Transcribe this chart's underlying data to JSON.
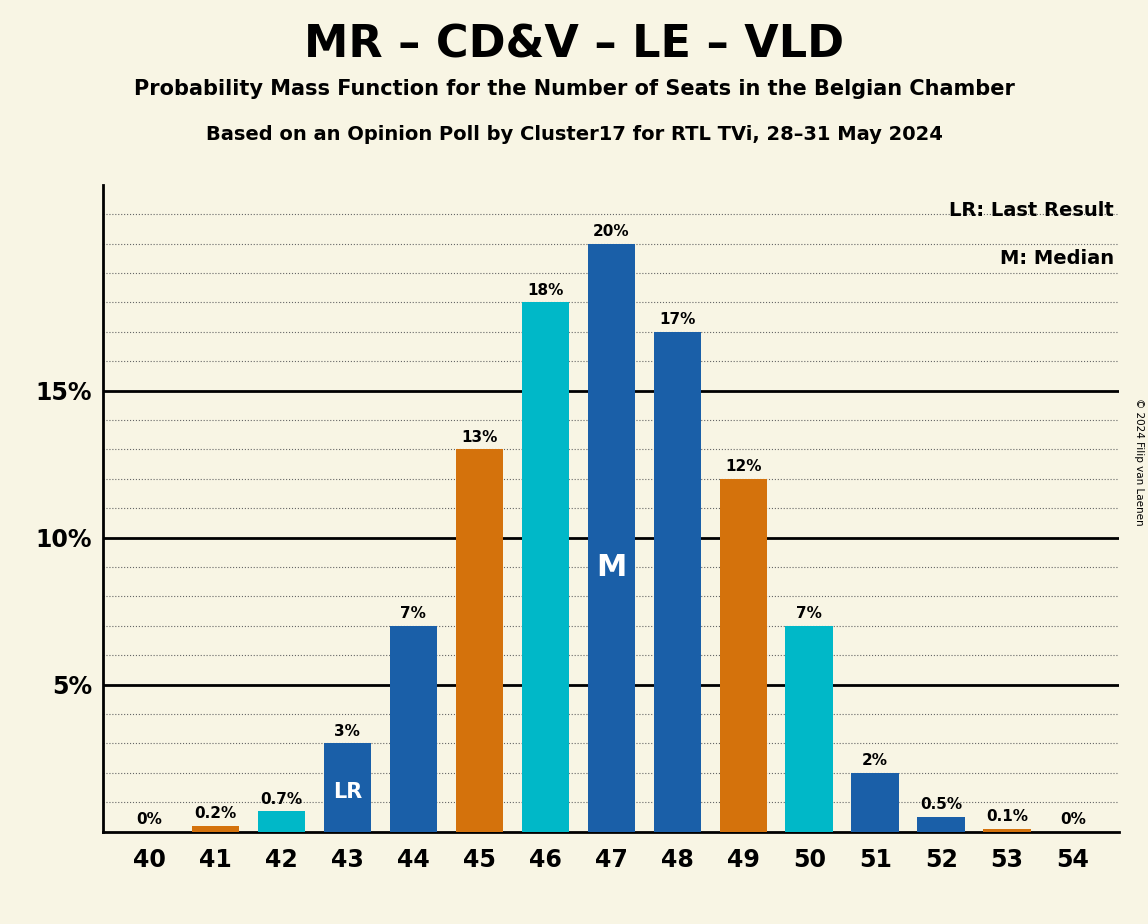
{
  "title": "MR – CD&V – LE – VLD",
  "subtitle1": "Probability Mass Function for the Number of Seats in the Belgian Chamber",
  "subtitle2": "Based on an Opinion Poll by Cluster17 for RTL TVi, 28–31 May 2024",
  "copyright": "© 2024 Filip van Laenen",
  "seats": [
    40,
    41,
    42,
    43,
    44,
    45,
    46,
    47,
    48,
    49,
    50,
    51,
    52,
    53,
    54
  ],
  "probabilities": [
    0.0,
    0.2,
    0.7,
    3.0,
    7.0,
    13.0,
    18.0,
    20.0,
    17.0,
    12.0,
    7.0,
    2.0,
    0.5,
    0.1,
    0.0
  ],
  "bar_colors": [
    "#1a5fa8",
    "#d4720c",
    "#00b8c8",
    "#1a5fa8",
    "#1a5fa8",
    "#d4720c",
    "#00b8c8",
    "#1a5fa8",
    "#1a5fa8",
    "#d4720c",
    "#00b8c8",
    "#1a5fa8",
    "#1a5fa8",
    "#d4720c",
    "#1a5fa8"
  ],
  "labels": [
    "0%",
    "0.2%",
    "0.7%",
    "3%",
    "7%",
    "13%",
    "18%",
    "20%",
    "17%",
    "12%",
    "7%",
    "2%",
    "0.5%",
    "0.1%",
    "0%"
  ],
  "lr_seat": 43,
  "median_seat": 47,
  "background_color": "#f8f5e4",
  "ylim": [
    0,
    22
  ],
  "solid_lines": [
    5,
    10,
    15
  ],
  "dotted_line_step": 1,
  "yticks": [
    5,
    10,
    15
  ],
  "ytick_labels": [
    "5%",
    "10%",
    "15%"
  ],
  "legend_lr": "LR: Last Result",
  "legend_m": "M: Median",
  "bar_width": 0.72
}
